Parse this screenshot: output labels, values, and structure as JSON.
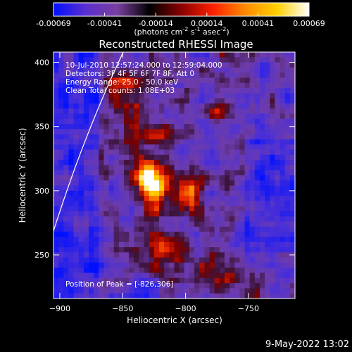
{
  "chart_data": {
    "type": "heatmap",
    "title": "Reconstructed RHESSI Image",
    "xlabel": "Heliocentric X (arcsec)",
    "ylabel": "Heliocentric Y (arcsec)",
    "xlim": [
      -905,
      -713
    ],
    "ylim": [
      216,
      408
    ],
    "x_ticks": [
      -900,
      -850,
      -800,
      -750
    ],
    "y_ticks": [
      250,
      300,
      350,
      400
    ],
    "colorbar": {
      "label_main": "(photons cm",
      "label_sup1": "-2",
      "label_mid1": " s",
      "label_sup2": "-1",
      "label_mid2": " asec",
      "label_sup3": "-2",
      "label_end": ")",
      "range": [
        -0.00069,
        0.00069
      ],
      "ticks": [
        "-0.00069",
        "-0.00041",
        "-0.00014",
        "0.00014",
        "0.00041",
        "0.00069"
      ],
      "colors": [
        "#0010ff",
        "#5a2fd0",
        "#7a3fa0",
        "#000000",
        "#8a0000",
        "#ff2000",
        "#ff8a00",
        "#ffd000",
        "#ffffff"
      ]
    },
    "annotations": [
      "10-Jul-2010 12:57:24.000 to 12:59:04.000",
      "Detectors: 3F 4F 5F 6F 7F 8F, Att 0",
      "Energy Range: 25.0 - 50.0 keV",
      "Clean     Total counts: 1.08E+03"
    ],
    "peak_label": "Position of Peak = [-826,306]",
    "peak": [
      -826,
      306
    ],
    "grid": false,
    "limb_line": true
  },
  "footer": {
    "date": "9-May-2022 13:02"
  }
}
